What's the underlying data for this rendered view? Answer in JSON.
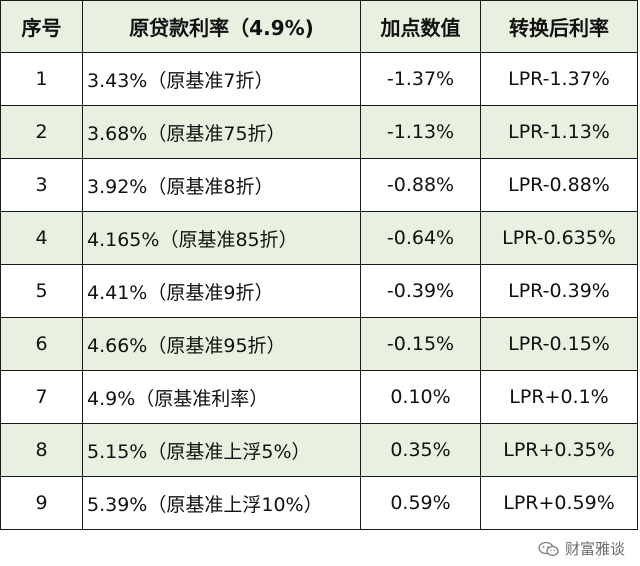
{
  "table": {
    "headers": [
      "序号",
      "原贷款利率（4.9%)",
      "加点数值",
      "转换后利率"
    ],
    "rows": [
      {
        "idx": "1",
        "original": "3.43%（原基准7折）",
        "add_points": "-1.37%",
        "converted": "LPR-1.37%"
      },
      {
        "idx": "2",
        "original": "3.68%（原基准75折）",
        "add_points": "-1.13%",
        "converted": "LPR-1.13%"
      },
      {
        "idx": "3",
        "original": "3.92%（原基准8折）",
        "add_points": "-0.88%",
        "converted": "LPR-0.88%"
      },
      {
        "idx": "4",
        "original": "4.165%（原基准85折）",
        "add_points": "-0.64%",
        "converted": "LPR-0.635%"
      },
      {
        "idx": "5",
        "original": "4.41%（原基准9折）",
        "add_points": "-0.39%",
        "converted": "LPR-0.39%"
      },
      {
        "idx": "6",
        "original": "4.66%（原基准95折）",
        "add_points": "-0.15%",
        "converted": "LPR-0.15%"
      },
      {
        "idx": "7",
        "original": "4.9%（原基准利率）",
        "add_points": "0.10%",
        "converted": "LPR+0.1%"
      },
      {
        "idx": "8",
        "original": "5.15%（原基准上浮5%）",
        "add_points": "0.35%",
        "converted": "LPR+0.35%"
      },
      {
        "idx": "9",
        "original": "5.39%（原基准上浮10%）",
        "add_points": "0.59%",
        "converted": "LPR+0.59%"
      }
    ]
  },
  "watermark": {
    "text": "财富雅谈",
    "icon": "wechat-icon"
  },
  "colors": {
    "header_bg": "#e8f0e0",
    "alt_row_bg": "#e8f0e0",
    "border": "#1a1a1a",
    "text": "#111111"
  }
}
